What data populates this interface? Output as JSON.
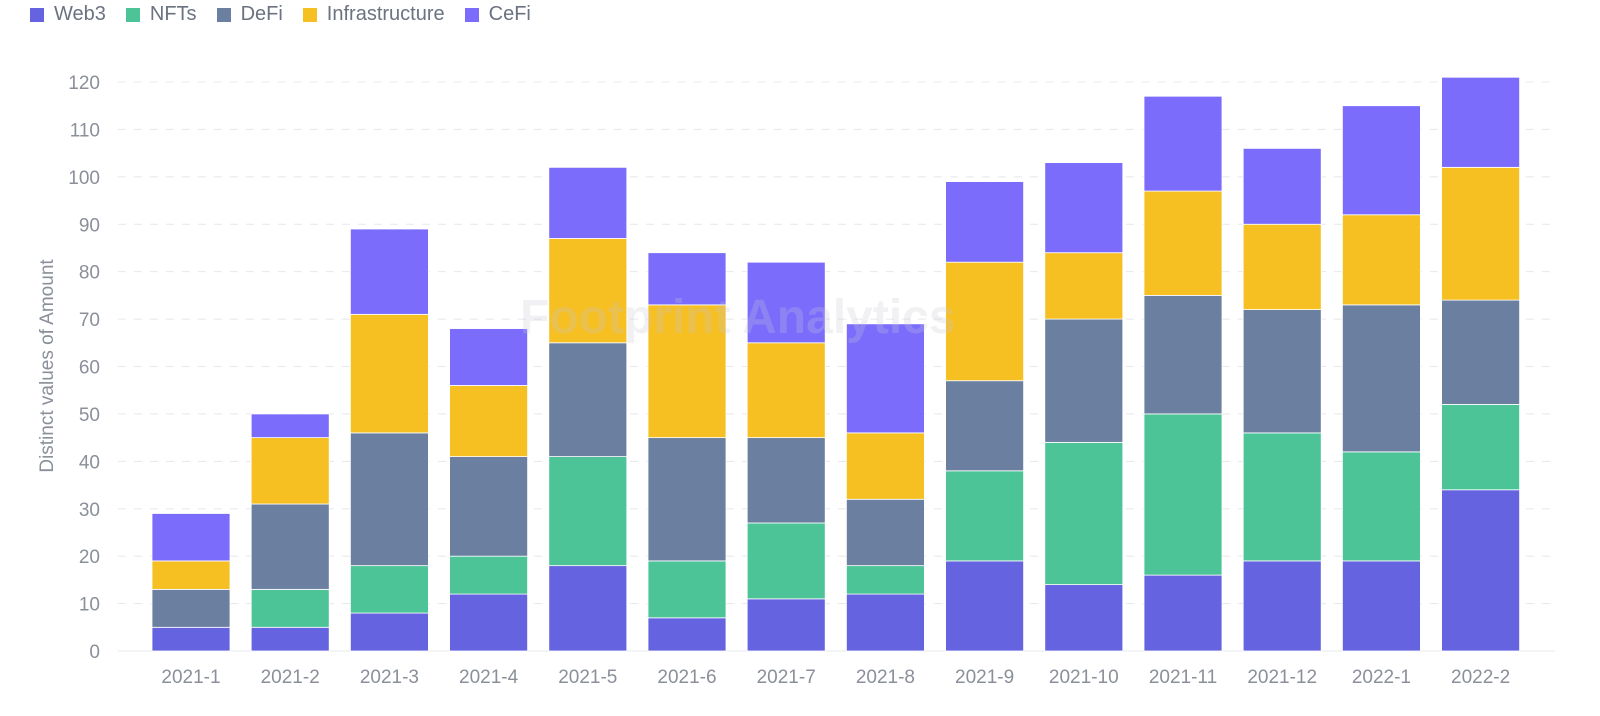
{
  "chart_data": {
    "type": "bar",
    "stacked": true,
    "categories": [
      "2021-1",
      "2021-2",
      "2021-3",
      "2021-4",
      "2021-5",
      "2021-6",
      "2021-7",
      "2021-8",
      "2021-9",
      "2021-10",
      "2021-11",
      "2021-12",
      "2022-1",
      "2022-2"
    ],
    "series": [
      {
        "name": "Web3",
        "color": "#6563e0",
        "values": [
          5,
          5,
          8,
          12,
          18,
          7,
          11,
          12,
          19,
          14,
          16,
          19,
          19,
          34
        ]
      },
      {
        "name": "NFTs",
        "color": "#4cc497",
        "values": [
          0,
          8,
          10,
          8,
          23,
          12,
          16,
          6,
          19,
          30,
          34,
          27,
          23,
          18
        ]
      },
      {
        "name": "DeFi",
        "color": "#6b7fa0",
        "values": [
          8,
          18,
          28,
          21,
          24,
          26,
          18,
          14,
          19,
          26,
          25,
          26,
          31,
          22
        ]
      },
      {
        "name": "Infrastructure",
        "color": "#f6bf22",
        "values": [
          6,
          14,
          25,
          15,
          22,
          28,
          20,
          14,
          25,
          14,
          22,
          18,
          19,
          28
        ]
      },
      {
        "name": "CeFi",
        "color": "#7b6cfc",
        "values": [
          10,
          5,
          18,
          12,
          15,
          11,
          17,
          23,
          17,
          19,
          20,
          16,
          23,
          19
        ]
      }
    ],
    "ylabel": "Distinct values of Amount",
    "xlabel": "",
    "ylim": [
      0,
      120
    ],
    "yticks": [
      0,
      10,
      20,
      30,
      40,
      50,
      60,
      70,
      80,
      90,
      100,
      110,
      120
    ],
    "grid": true,
    "legend": "top-left"
  },
  "watermark": "Footprint Analytics"
}
